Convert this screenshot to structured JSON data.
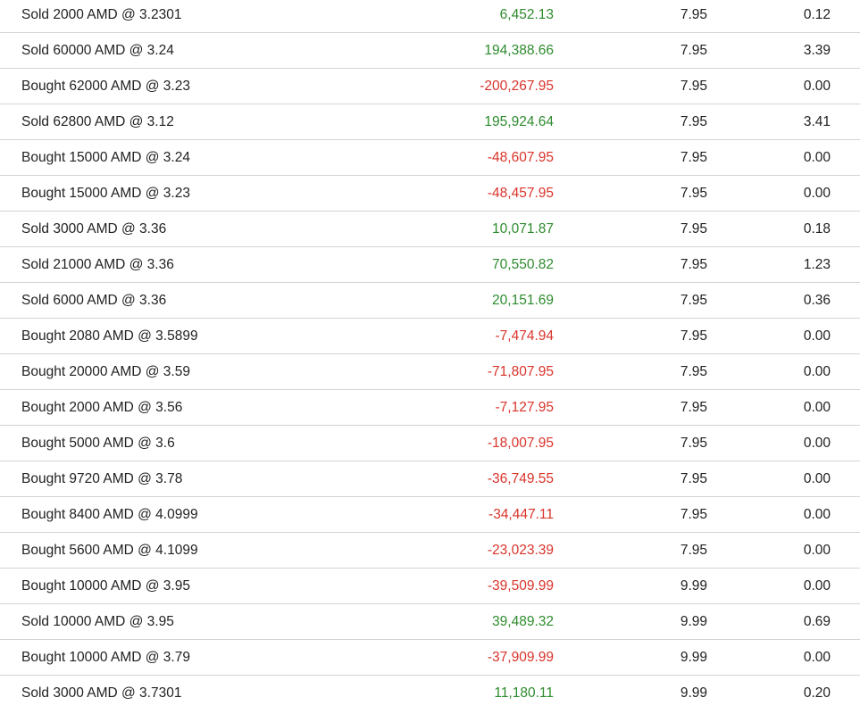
{
  "colors": {
    "positive": "#2e8b2e",
    "negative": "#d9342b",
    "text": "#222222",
    "divider": "#d4d4d4"
  },
  "transactions": [
    {
      "description": "Sold 2000 AMD @ 3.2301",
      "amount": "6,452.13",
      "sign": "pos",
      "commission": "7.95",
      "fee": "0.12"
    },
    {
      "description": "Sold 60000 AMD @ 3.24",
      "amount": "194,388.66",
      "sign": "pos",
      "commission": "7.95",
      "fee": "3.39"
    },
    {
      "description": "Bought 62000 AMD @ 3.23",
      "amount": "-200,267.95",
      "sign": "neg",
      "commission": "7.95",
      "fee": "0.00"
    },
    {
      "description": "Sold 62800 AMD @ 3.12",
      "amount": "195,924.64",
      "sign": "pos",
      "commission": "7.95",
      "fee": "3.41"
    },
    {
      "description": "Bought 15000 AMD @ 3.24",
      "amount": "-48,607.95",
      "sign": "neg",
      "commission": "7.95",
      "fee": "0.00"
    },
    {
      "description": "Bought 15000 AMD @ 3.23",
      "amount": "-48,457.95",
      "sign": "neg",
      "commission": "7.95",
      "fee": "0.00"
    },
    {
      "description": "Sold 3000 AMD @ 3.36",
      "amount": "10,071.87",
      "sign": "pos",
      "commission": "7.95",
      "fee": "0.18"
    },
    {
      "description": "Sold 21000 AMD @ 3.36",
      "amount": "70,550.82",
      "sign": "pos",
      "commission": "7.95",
      "fee": "1.23"
    },
    {
      "description": "Sold 6000 AMD @ 3.36",
      "amount": "20,151.69",
      "sign": "pos",
      "commission": "7.95",
      "fee": "0.36"
    },
    {
      "description": "Bought 2080 AMD @ 3.5899",
      "amount": "-7,474.94",
      "sign": "neg",
      "commission": "7.95",
      "fee": "0.00"
    },
    {
      "description": "Bought 20000 AMD @ 3.59",
      "amount": "-71,807.95",
      "sign": "neg",
      "commission": "7.95",
      "fee": "0.00"
    },
    {
      "description": "Bought 2000 AMD @ 3.56",
      "amount": "-7,127.95",
      "sign": "neg",
      "commission": "7.95",
      "fee": "0.00"
    },
    {
      "description": "Bought 5000 AMD @ 3.6",
      "amount": "-18,007.95",
      "sign": "neg",
      "commission": "7.95",
      "fee": "0.00"
    },
    {
      "description": "Bought 9720 AMD @ 3.78",
      "amount": "-36,749.55",
      "sign": "neg",
      "commission": "7.95",
      "fee": "0.00"
    },
    {
      "description": "Bought 8400 AMD @ 4.0999",
      "amount": "-34,447.11",
      "sign": "neg",
      "commission": "7.95",
      "fee": "0.00"
    },
    {
      "description": "Bought 5600 AMD @ 4.1099",
      "amount": "-23,023.39",
      "sign": "neg",
      "commission": "7.95",
      "fee": "0.00"
    },
    {
      "description": "Bought 10000 AMD @ 3.95",
      "amount": "-39,509.99",
      "sign": "neg",
      "commission": "9.99",
      "fee": "0.00"
    },
    {
      "description": "Sold 10000 AMD @ 3.95",
      "amount": "39,489.32",
      "sign": "pos",
      "commission": "9.99",
      "fee": "0.69"
    },
    {
      "description": "Bought 10000 AMD @ 3.79",
      "amount": "-37,909.99",
      "sign": "neg",
      "commission": "9.99",
      "fee": "0.00"
    },
    {
      "description": "Sold 3000 AMD @ 3.7301",
      "amount": "11,180.11",
      "sign": "pos",
      "commission": "9.99",
      "fee": "0.20"
    }
  ]
}
